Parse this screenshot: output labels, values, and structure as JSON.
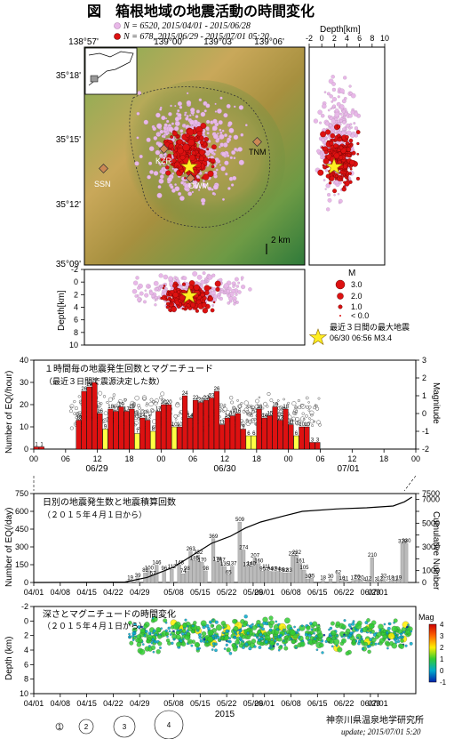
{
  "header": {
    "fig_label": "図",
    "title": "箱根地域の地震活動の時間変化",
    "legend_pink": "N = 6520,  2015/04/01 - 2015/06/28",
    "legend_red": "N = 678,  2015/06/29 - 2015/07/01 05:20"
  },
  "map": {
    "lon_labels": [
      "138°57'",
      "139°00'",
      "139°03'",
      "139°06'"
    ],
    "lat_labels": [
      "35°18'",
      "35°15'",
      "35°12'",
      "35°09'"
    ],
    "stations": [
      "KZR",
      "TNM",
      "SSN",
      "OWM"
    ],
    "scale": "2 km"
  },
  "depth_side": {
    "title": "Depth[km]",
    "ticks": [
      "-2",
      "0",
      "2",
      "4",
      "6",
      "8",
      "10"
    ]
  },
  "depth_bottom": {
    "ylabel": "Depth[km]",
    "ticks": [
      "-2",
      "0",
      "2",
      "4",
      "6",
      "8",
      "10"
    ]
  },
  "mag_legend": {
    "title": "M",
    "items": [
      "3.0",
      "2.0",
      "1.0",
      "< 0.0"
    ],
    "star_label1": "最近３日間の最大地震",
    "star_label2": "06/30 06:56 M3.4"
  },
  "colors": {
    "red": "#dd1111",
    "yellow": "#ffff44",
    "pink": "#e8b8e8",
    "grey_bar": "#bbbbbb",
    "star": "#ffee22"
  },
  "chart_data": [
    {
      "type": "bar",
      "title": "１時間毎の地震発生回数とマグニチュード",
      "subtitle": "（最近３日間で震源決定した数）",
      "ylabel": "Number of EQ(/hour)",
      "ylabel2": "Magnitude",
      "yticks": [
        "0",
        "10",
        "20",
        "30",
        "40"
      ],
      "yticks2": [
        "-2",
        "-1",
        "0",
        "1",
        "2",
        "3"
      ],
      "xticks": [
        "00",
        "06",
        "12",
        "18",
        "00",
        "06",
        "12",
        "18",
        "00",
        "06",
        "12",
        "18",
        "00"
      ],
      "date_labels": [
        "06/29",
        "06/30",
        "07/01"
      ],
      "ylim": [
        0,
        40
      ],
      "hours": [
        [
          0,
          1,
          "red"
        ],
        [
          1,
          1,
          "red"
        ],
        [
          2,
          0,
          "red"
        ],
        [
          3,
          0,
          "red"
        ],
        [
          4,
          0,
          "red"
        ],
        [
          5,
          0,
          "red"
        ],
        [
          6,
          0,
          "red"
        ],
        [
          7,
          0,
          "red"
        ],
        [
          8,
          13,
          "red"
        ],
        [
          9,
          26,
          "red"
        ],
        [
          10,
          28,
          "red"
        ],
        [
          11,
          30,
          "red"
        ],
        [
          12,
          16,
          "red"
        ],
        [
          13,
          9,
          "yellow"
        ],
        [
          14,
          18,
          "red"
        ],
        [
          15,
          17,
          "red"
        ],
        [
          16,
          19,
          "red"
        ],
        [
          17,
          17,
          "red"
        ],
        [
          18,
          18,
          "red"
        ],
        [
          19,
          7,
          "yellow"
        ],
        [
          20,
          14,
          "red"
        ],
        [
          21,
          13,
          "red"
        ],
        [
          22,
          8,
          "yellow"
        ],
        [
          23,
          17,
          "red"
        ],
        [
          24,
          20,
          "red"
        ],
        [
          25,
          20,
          "red"
        ],
        [
          26,
          10,
          "yellow"
        ],
        [
          27,
          10,
          "red"
        ],
        [
          28,
          24,
          "red"
        ],
        [
          29,
          14,
          "red"
        ],
        [
          30,
          22,
          "red"
        ],
        [
          31,
          21,
          "red"
        ],
        [
          32,
          22,
          "red"
        ],
        [
          33,
          23,
          "red"
        ],
        [
          34,
          26,
          "red"
        ],
        [
          35,
          11,
          "red"
        ],
        [
          36,
          14,
          "red"
        ],
        [
          37,
          15,
          "red"
        ],
        [
          38,
          16,
          "red"
        ],
        [
          39,
          9,
          "red"
        ],
        [
          40,
          6,
          "yellow"
        ],
        [
          41,
          6,
          "yellow"
        ],
        [
          42,
          18,
          "red"
        ],
        [
          43,
          14,
          "red"
        ],
        [
          44,
          15,
          "red"
        ],
        [
          45,
          19,
          "red"
        ],
        [
          46,
          13,
          "red"
        ],
        [
          47,
          18,
          "red"
        ],
        [
          48,
          11,
          "red"
        ],
        [
          49,
          6,
          "yellow"
        ],
        [
          50,
          10,
          "red"
        ],
        [
          51,
          10,
          "red"
        ],
        [
          52,
          3,
          "red"
        ],
        [
          53,
          3,
          "red"
        ]
      ]
    },
    {
      "type": "bar",
      "title": "日別の地震発生数と地震積算回数",
      "subtitle": "（２０１５年４月１日から）",
      "ylabel": "Number of EQ(/day)",
      "ylabel2": "Cumulative Number",
      "yticks": [
        "0",
        "150",
        "300",
        "450",
        "600",
        "750"
      ],
      "yticks2": [
        "0",
        "1000",
        "2000",
        "3000",
        "4000",
        "5000",
        "6000",
        "7000",
        "7500"
      ],
      "xticks": [
        "04/01",
        "04/08",
        "04/15",
        "04/22",
        "04/29",
        "05/08",
        "05/15",
        "05/22",
        "05/29",
        "06/01",
        "06/08",
        "06/15",
        "06/22",
        "06/29",
        "07/01"
      ],
      "ylim": [
        0,
        750
      ],
      "labeled_days": [
        [
          25,
          19
        ],
        [
          27,
          39
        ],
        [
          29,
          82
        ],
        [
          30,
          100
        ],
        [
          31,
          57
        ],
        [
          32,
          146
        ],
        [
          34,
          96
        ],
        [
          36,
          112
        ],
        [
          38,
          148
        ],
        [
          39,
          74
        ],
        [
          40,
          98
        ],
        [
          41,
          263
        ],
        [
          42,
          185
        ],
        [
          43,
          232
        ],
        [
          44,
          170
        ],
        [
          45,
          98
        ],
        [
          47,
          369
        ],
        [
          48,
          176
        ],
        [
          49,
          167
        ],
        [
          50,
          135
        ],
        [
          51,
          65
        ],
        [
          52,
          137
        ],
        [
          54,
          509
        ],
        [
          55,
          274
        ],
        [
          56,
          132
        ],
        [
          57,
          140
        ],
        [
          58,
          207
        ],
        [
          59,
          160
        ],
        [
          60,
          95
        ],
        [
          61,
          111
        ],
        [
          62,
          94
        ],
        [
          63,
          92
        ],
        [
          64,
          94
        ],
        [
          65,
          86
        ],
        [
          66,
          82
        ],
        [
          67,
          83
        ],
        [
          68,
          222
        ],
        [
          69,
          232
        ],
        [
          70,
          161
        ],
        [
          71,
          105
        ],
        [
          72,
          30
        ],
        [
          73,
          35
        ],
        [
          76,
          18
        ],
        [
          78,
          30
        ],
        [
          80,
          62
        ],
        [
          81,
          16
        ],
        [
          82,
          11
        ],
        [
          84,
          17
        ],
        [
          85,
          26
        ],
        [
          86,
          20
        ],
        [
          87,
          4
        ],
        [
          88,
          12
        ],
        [
          89,
          210
        ],
        [
          90,
          3
        ],
        [
          91,
          12
        ],
        [
          92,
          32
        ],
        [
          93,
          7
        ],
        [
          94,
          18
        ],
        [
          95,
          11
        ],
        [
          96,
          19
        ],
        [
          97,
          328
        ],
        [
          98,
          330
        ]
      ],
      "cumulative": [
        [
          0,
          0
        ],
        [
          24,
          30
        ],
        [
          30,
          430
        ],
        [
          37,
          1300
        ],
        [
          41,
          2100
        ],
        [
          47,
          3300
        ],
        [
          52,
          3900
        ],
        [
          56,
          4600
        ],
        [
          60,
          5100
        ],
        [
          66,
          5600
        ],
        [
          71,
          6000
        ],
        [
          80,
          6200
        ],
        [
          88,
          6300
        ],
        [
          95,
          6450
        ],
        [
          98,
          6800
        ],
        [
          100,
          7200
        ]
      ]
    },
    {
      "type": "scatter",
      "title": "深さとマグニチュードの時間変化",
      "subtitle": "（２０１５年４月１日から）",
      "ylabel": "Depth (km)",
      "xlabel": "2015",
      "yticks": [
        "-2",
        "0",
        "2",
        "4",
        "6",
        "8",
        "10"
      ],
      "xticks": [
        "04/01",
        "04/08",
        "04/15",
        "04/22",
        "04/29",
        "05/08",
        "05/15",
        "05/22",
        "05/29",
        "06/01",
        "06/08",
        "06/15",
        "06/22",
        "06/29",
        "07/01"
      ],
      "colorbar": {
        "title": "Mag",
        "ticks": [
          "4",
          "3",
          "2",
          "1",
          "0",
          "-1"
        ]
      },
      "size_legend": [
        "1",
        "2",
        "3",
        "4"
      ]
    }
  ],
  "footer": {
    "institute": "神奈川県温泉地学研究所",
    "update": "update; 2015/07/01  5:20"
  }
}
